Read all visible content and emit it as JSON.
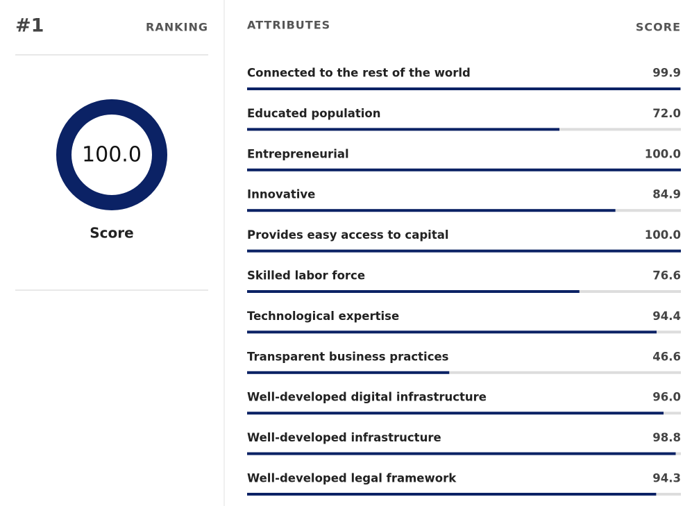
{
  "chart_data": {
    "type": "bar",
    "rank": "#1",
    "rank_caption": "RANKING",
    "score": 100,
    "score_label": "100.0",
    "score_caption": "Score",
    "category_header": "ATTRIBUTES",
    "value_header": "SCORE",
    "categories": [
      "Connected to the rest of the world",
      "Educated population",
      "Entrepreneurial",
      "Innovative",
      "Provides easy access to capital",
      "Skilled labor force",
      "Technological expertise",
      "Transparent business practices",
      "Well-developed digital infrastructure",
      "Well-developed infrastructure",
      "Well-developed legal framework"
    ],
    "values": [
      99.9,
      72,
      100,
      84.9,
      100,
      76.6,
      94.4,
      46.6,
      96,
      98.8,
      94.3
    ],
    "value_labels": [
      "99.9",
      "72.0",
      "100.0",
      "84.9",
      "100.0",
      "76.6",
      "94.4",
      "46.6",
      "96.0",
      "98.8",
      "94.3"
    ],
    "xlim": [
      0,
      100
    ],
    "color": "#0b2265",
    "track_color": "#dddddd"
  }
}
